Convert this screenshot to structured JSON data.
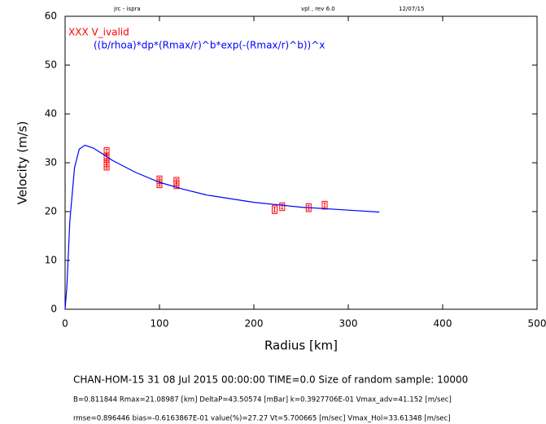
{
  "chart_data": {
    "type": "scatter",
    "header_left": "jrc - ispra",
    "header_center": "vpl , rev 6.0",
    "header_right": "12/07/15",
    "x_label": "Radius [km]",
    "y_label": "Velocity (m/s)",
    "xlim": [
      0,
      500
    ],
    "ylim": [
      0,
      60
    ],
    "xticks": [
      0,
      100,
      200,
      300,
      400,
      500
    ],
    "yticks": [
      0,
      10,
      20,
      30,
      40,
      50,
      60
    ],
    "series": [
      {
        "name": "XXX  V_ivalid",
        "type": "scatter",
        "color": "#ff0000",
        "x": [
          44,
          44,
          44,
          44,
          100,
          100,
          118,
          118,
          222,
          230,
          258,
          275
        ],
        "values": [
          32.3,
          31.2,
          30.0,
          29.3,
          26.5,
          25.7,
          26.2,
          25.5,
          20.4,
          21.0,
          20.8,
          21.3
        ],
        "errors": [
          0.8,
          0.8,
          0.8,
          0.8,
          0.8,
          0.8,
          0.8,
          0.8,
          0.8,
          0.8,
          0.8,
          0.8
        ]
      },
      {
        "name": "((b/rhoa)*dp*(Rmax/r)^b*exp(-(Rmax/r)^b))^x",
        "type": "line",
        "color": "#0000ff",
        "x": [
          0,
          2,
          5,
          10,
          15,
          21,
          30,
          40,
          50,
          75,
          100,
          125,
          150,
          200,
          250,
          300,
          333
        ],
        "values": [
          0,
          5,
          18,
          29,
          32.8,
          33.6,
          33,
          31.8,
          30.5,
          28,
          26,
          24.6,
          23.4,
          21.9,
          20.9,
          20.3,
          19.9
        ]
      }
    ],
    "footer": [
      "CHAN-HOM-15 31 08 Jul 2015  00:00:00 TIME=0.0     Size of random sample: 10000",
      "B=0.811844 Rmax=21.08987 [km]  DeltaP=43.50574 [mBar] k=0.3927706E-01 Vmax_adv=41.152 [m/sec]",
      "rmse=0.896446 bias=-0.6163867E-01 value(%)=27.27 Vt=5.700665 [m/sec] Vmax_Hol=33.61348 [m/sec]"
    ]
  }
}
